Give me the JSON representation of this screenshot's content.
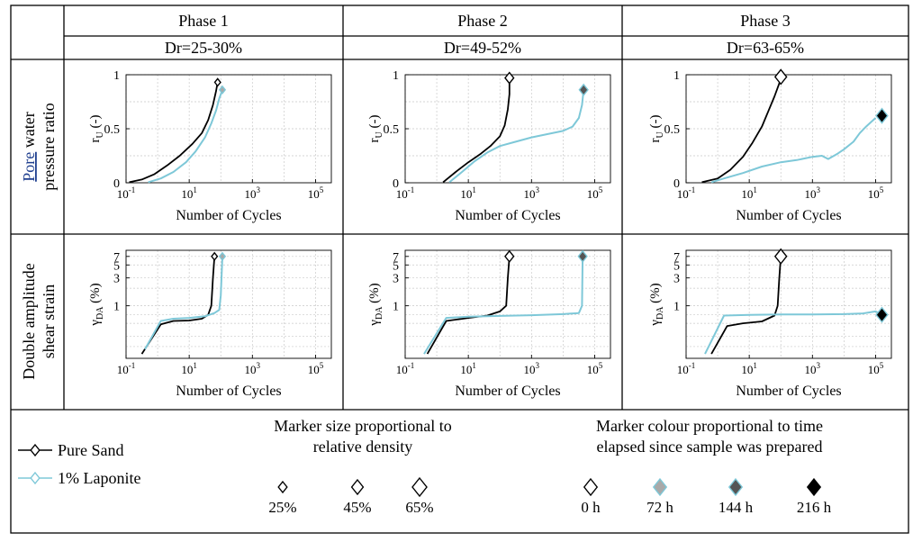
{
  "chart_data": {
    "type": "line",
    "columns": [
      {
        "phase": "Phase 1",
        "dr": "Dr=25-30%"
      },
      {
        "phase": "Phase 2",
        "dr": "Dr=49-52%"
      },
      {
        "phase": "Phase 3",
        "dr": "Dr=63-65%"
      }
    ],
    "row_labels": [
      {
        "line1_underlined": "Pore",
        "line1_rest": " water",
        "line2": "pressure ratio"
      },
      {
        "line1": "Double amplitude",
        "line2": "shear strain"
      }
    ],
    "axes": {
      "x_label": "Number of Cycles",
      "x_scale": "log",
      "x_range_log10": [
        -1,
        5.5
      ],
      "x_ticks": [
        {
          "v": -1,
          "base": "10",
          "exp": "-1"
        },
        {
          "v": 1,
          "base": "10",
          "exp": "1"
        },
        {
          "v": 3,
          "base": "10",
          "exp": "3"
        },
        {
          "v": 5,
          "base": "10",
          "exp": "5"
        }
      ],
      "ru": {
        "y_label": "r",
        "y_label_sub": "U",
        "y_label_unit": " (-)",
        "y_range": [
          0,
          1
        ],
        "y_ticks": [
          {
            "v": 0,
            "label": "0"
          },
          {
            "v": 0.5,
            "label": "0.5"
          },
          {
            "v": 1,
            "label": "1"
          }
        ],
        "gridlines": [
          0.25,
          0.5,
          0.75,
          1
        ]
      },
      "strain": {
        "y_label": "γ",
        "y_label_sub": "DA",
        "y_label_unit": " (%)",
        "y_scale": "log",
        "y_range_log10": [
          -0.9,
          0.95
        ],
        "y_ticks": [
          {
            "v": 1,
            "label": "1"
          },
          {
            "v": 3,
            "label": "3"
          },
          {
            "v": 5,
            "label": "5"
          },
          {
            "v": 7,
            "label": "7"
          }
        ],
        "gridlines": [
          0.2,
          0.3,
          0.5,
          0.7,
          1,
          2,
          3,
          5,
          7
        ]
      }
    },
    "series": [
      {
        "name": "Pure Sand",
        "color": "#000000"
      },
      {
        "name": "1% Laponite",
        "color": "#7ec8d8"
      }
    ],
    "panels": [
      {
        "row": "ru",
        "col": 0,
        "lines": [
          {
            "series": "Pure Sand",
            "points": [
              [
                -0.9,
                0.005
              ],
              [
                -0.5,
                0.03
              ],
              [
                -0.1,
                0.08
              ],
              [
                0.3,
                0.16
              ],
              [
                0.7,
                0.25
              ],
              [
                1.1,
                0.36
              ],
              [
                1.4,
                0.46
              ],
              [
                1.6,
                0.58
              ],
              [
                1.75,
                0.72
              ],
              [
                1.85,
                0.85
              ],
              [
                1.9,
                0.93
              ]
            ]
          },
          {
            "series": "1% Laponite",
            "points": [
              [
                -0.3,
                0.005
              ],
              [
                0.1,
                0.04
              ],
              [
                0.5,
                0.1
              ],
              [
                0.9,
                0.19
              ],
              [
                1.2,
                0.29
              ],
              [
                1.5,
                0.42
              ],
              [
                1.7,
                0.55
              ],
              [
                1.85,
                0.67
              ],
              [
                1.95,
                0.78
              ],
              [
                2.05,
                0.86
              ]
            ]
          }
        ],
        "markers": [
          {
            "series": "Pure Sand",
            "x": 1.9,
            "y": 0.93,
            "size_pct": 25,
            "fill": "#ffffff"
          },
          {
            "series": "1% Laponite",
            "x": 2.05,
            "y": 0.86,
            "size_pct": 25,
            "fill": "#a9a9a9"
          }
        ]
      },
      {
        "row": "ru",
        "col": 1,
        "lines": [
          {
            "series": "Pure Sand",
            "points": [
              [
                0.2,
                0.005
              ],
              [
                0.6,
                0.1
              ],
              [
                1.0,
                0.19
              ],
              [
                1.4,
                0.27
              ],
              [
                1.7,
                0.34
              ],
              [
                2.0,
                0.43
              ],
              [
                2.15,
                0.53
              ],
              [
                2.25,
                0.68
              ],
              [
                2.3,
                0.82
              ],
              [
                2.3,
                0.97
              ]
            ]
          },
          {
            "series": "1% Laponite",
            "points": [
              [
                0.4,
                0.005
              ],
              [
                0.8,
                0.1
              ],
              [
                1.2,
                0.2
              ],
              [
                1.6,
                0.28
              ],
              [
                2.0,
                0.34
              ],
              [
                2.5,
                0.38
              ],
              [
                3.0,
                0.42
              ],
              [
                3.5,
                0.45
              ],
              [
                4.0,
                0.48
              ],
              [
                4.3,
                0.52
              ],
              [
                4.5,
                0.6
              ],
              [
                4.6,
                0.72
              ],
              [
                4.65,
                0.86
              ]
            ]
          }
        ],
        "markers": [
          {
            "series": "Pure Sand",
            "x": 2.3,
            "y": 0.97,
            "size_pct": 45,
            "fill": "#ffffff"
          },
          {
            "series": "1% Laponite",
            "x": 4.65,
            "y": 0.86,
            "size_pct": 45,
            "fill": "#555555"
          }
        ]
      },
      {
        "row": "ru",
        "col": 2,
        "lines": [
          {
            "series": "Pure Sand",
            "points": [
              [
                -0.5,
                0.005
              ],
              [
                0,
                0.04
              ],
              [
                0.4,
                0.12
              ],
              [
                0.8,
                0.24
              ],
              [
                1.1,
                0.37
              ],
              [
                1.4,
                0.52
              ],
              [
                1.6,
                0.66
              ],
              [
                1.8,
                0.8
              ],
              [
                1.95,
                0.92
              ],
              [
                2.0,
                0.98
              ]
            ]
          },
          {
            "series": "1% Laponite",
            "points": [
              [
                -0.2,
                0.005
              ],
              [
                0.2,
                0.04
              ],
              [
                0.8,
                0.09
              ],
              [
                1.4,
                0.15
              ],
              [
                2.0,
                0.19
              ],
              [
                2.5,
                0.21
              ],
              [
                3.0,
                0.24
              ],
              [
                3.3,
                0.25
              ],
              [
                3.5,
                0.22
              ],
              [
                3.8,
                0.27
              ],
              [
                4.0,
                0.31
              ],
              [
                4.3,
                0.38
              ],
              [
                4.5,
                0.46
              ],
              [
                4.7,
                0.52
              ],
              [
                4.85,
                0.56
              ],
              [
                5.0,
                0.6
              ]
            ]
          }
        ],
        "markers": [
          {
            "series": "Pure Sand",
            "x": 2.0,
            "y": 0.98,
            "size_pct": 65,
            "fill": "#ffffff"
          },
          {
            "series": "1% Laponite",
            "x": 5.2,
            "y": 0.62,
            "size_pct": 65,
            "fill": "#000000"
          }
        ]
      },
      {
        "row": "strain",
        "col": 0,
        "lines": [
          {
            "series": "Pure Sand",
            "points": [
              [
                -0.5,
                0.15
              ],
              [
                0.1,
                0.48
              ],
              [
                0.5,
                0.55
              ],
              [
                1.0,
                0.56
              ],
              [
                1.4,
                0.6
              ],
              [
                1.6,
                0.7
              ],
              [
                1.7,
                1.0
              ],
              [
                1.75,
                3.0
              ],
              [
                1.8,
                7.0
              ]
            ]
          },
          {
            "series": "1% Laponite",
            "points": [
              [
                -0.4,
                0.18
              ],
              [
                0.1,
                0.55
              ],
              [
                0.5,
                0.6
              ],
              [
                1.0,
                0.62
              ],
              [
                1.5,
                0.66
              ],
              [
                1.8,
                0.75
              ],
              [
                1.95,
                0.85
              ],
              [
                2.0,
                1.5
              ],
              [
                2.05,
                7.0
              ]
            ]
          }
        ],
        "markers": [
          {
            "series": "Pure Sand",
            "x": 1.8,
            "y": 7.0,
            "size_pct": 25,
            "fill": "#ffffff"
          },
          {
            "series": "1% Laponite",
            "x": 2.05,
            "y": 7.0,
            "size_pct": 25,
            "fill": "#a9a9a9"
          }
        ]
      },
      {
        "row": "strain",
        "col": 1,
        "lines": [
          {
            "series": "Pure Sand",
            "points": [
              [
                -0.3,
                0.15
              ],
              [
                0.3,
                0.55
              ],
              [
                1.0,
                0.62
              ],
              [
                1.6,
                0.68
              ],
              [
                2.0,
                0.8
              ],
              [
                2.2,
                1.0
              ],
              [
                2.25,
                3.0
              ],
              [
                2.3,
                7.0
              ]
            ]
          },
          {
            "series": "1% Laponite",
            "points": [
              [
                -0.4,
                0.15
              ],
              [
                0.3,
                0.62
              ],
              [
                1.0,
                0.65
              ],
              [
                2.0,
                0.67
              ],
              [
                3.0,
                0.69
              ],
              [
                4.0,
                0.72
              ],
              [
                4.5,
                0.75
              ],
              [
                4.6,
                1.0
              ],
              [
                4.62,
                7.0
              ]
            ]
          }
        ],
        "markers": [
          {
            "series": "Pure Sand",
            "x": 2.3,
            "y": 7.0,
            "size_pct": 45,
            "fill": "#ffffff"
          },
          {
            "series": "1% Laponite",
            "x": 4.62,
            "y": 7.0,
            "size_pct": 45,
            "fill": "#555555"
          }
        ]
      },
      {
        "row": "strain",
        "col": 2,
        "lines": [
          {
            "series": "Pure Sand",
            "points": [
              [
                -0.2,
                0.15
              ],
              [
                0.3,
                0.45
              ],
              [
                0.8,
                0.5
              ],
              [
                1.4,
                0.54
              ],
              [
                1.8,
                0.68
              ],
              [
                1.9,
                1.0
              ],
              [
                1.95,
                3.0
              ],
              [
                2.0,
                7.0
              ]
            ]
          },
          {
            "series": "1% Laponite",
            "points": [
              [
                -0.4,
                0.15
              ],
              [
                0.2,
                0.68
              ],
              [
                1.0,
                0.7
              ],
              [
                2.0,
                0.71
              ],
              [
                3.0,
                0.71
              ],
              [
                4.0,
                0.72
              ],
              [
                4.6,
                0.74
              ],
              [
                5.0,
                0.8
              ],
              [
                5.2,
                0.7
              ]
            ]
          }
        ],
        "markers": [
          {
            "series": "Pure Sand",
            "x": 2.0,
            "y": 7.0,
            "size_pct": 65,
            "fill": "#ffffff"
          },
          {
            "series": "1% Laponite",
            "x": 5.2,
            "y": 0.7,
            "size_pct": 65,
            "fill": "#000000"
          }
        ]
      }
    ],
    "legend": {
      "series": [
        {
          "label": "Pure Sand",
          "color": "#000000"
        },
        {
          "label": "1% Laponite",
          "color": "#7ec8d8"
        }
      ],
      "size_title": [
        "Marker size proportional to",
        "relative density"
      ],
      "size_items": [
        {
          "label": "25%",
          "size_pct": 25
        },
        {
          "label": "45%",
          "size_pct": 45
        },
        {
          "label": "65%",
          "size_pct": 65
        }
      ],
      "colour_title": [
        "Marker colour proportional to time",
        "elapsed since sample was prepared"
      ],
      "colour_items": [
        {
          "label": "0 h",
          "fill": "#ffffff"
        },
        {
          "label": "72 h",
          "fill": "#a9a9a9"
        },
        {
          "label": "144 h",
          "fill": "#555555"
        },
        {
          "label": "216 h",
          "fill": "#000000"
        }
      ]
    }
  }
}
